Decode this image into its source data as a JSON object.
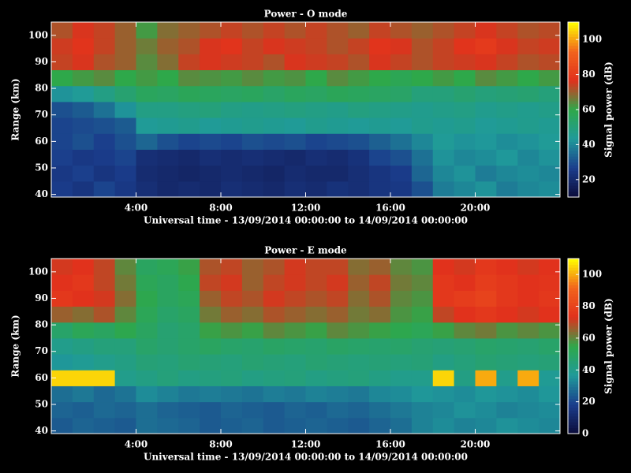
{
  "chart_data": [
    {
      "type": "heatmap",
      "title": "Power - O mode",
      "xlabel": "Universal time - 13/09/2014 00:00:00 to 14/09/2014 00:00:00",
      "ylabel": "Range (km)",
      "colorbar_label": "Signal power (dB)",
      "xlim": [
        0,
        24
      ],
      "xticks": [
        {
          "value": 4,
          "label": "4:00"
        },
        {
          "value": 8,
          "label": "8:00"
        },
        {
          "value": 12,
          "label": "12:00"
        },
        {
          "value": 16,
          "label": "16:00"
        },
        {
          "value": 20,
          "label": "20:00"
        }
      ],
      "ylim": [
        39,
        105
      ],
      "yticks": [
        40,
        50,
        60,
        70,
        80,
        90,
        100
      ],
      "zlim": [
        10,
        110
      ],
      "zticks": [
        20,
        40,
        60,
        80,
        100
      ],
      "colormap": [
        "#0b0b3a",
        "#1b3d8c",
        "#1f9a9a",
        "#2ea84a",
        "#e0301c",
        "#f2641c",
        "#ffff00"
      ],
      "x": [
        0.5,
        1.5,
        2.5,
        3.5,
        4.5,
        5.5,
        6.5,
        7.5,
        8.5,
        9.5,
        10.5,
        11.5,
        12.5,
        13.5,
        14.5,
        15.5,
        16.5,
        17.5,
        18.5,
        19.5,
        20.5,
        21.5,
        22.5,
        23.5
      ],
      "y": [
        42,
        48,
        54,
        60,
        66,
        72,
        78,
        84,
        90,
        96,
        102
      ],
      "z": [
        [
          26,
          24,
          28,
          25,
          22,
          20,
          21,
          20,
          22,
          21,
          20,
          22,
          21,
          23,
          22,
          24,
          25,
          30,
          38,
          40,
          42,
          38,
          40,
          41
        ],
        [
          25,
          27,
          24,
          26,
          21,
          20,
          19,
          20,
          21,
          20,
          19,
          21,
          20,
          20,
          22,
          24,
          26,
          34,
          40,
          42,
          38,
          40,
          41,
          40
        ],
        [
          27,
          25,
          26,
          28,
          22,
          21,
          20,
          22,
          21,
          22,
          21,
          20,
          22,
          21,
          23,
          28,
          30,
          36,
          42,
          40,
          41,
          43,
          40,
          42
        ],
        [
          28,
          30,
          27,
          30,
          34,
          30,
          28,
          29,
          28,
          30,
          29,
          30,
          28,
          29,
          30,
          33,
          36,
          40,
          44,
          42,
          43,
          41,
          42,
          44
        ],
        [
          28,
          29,
          30,
          32,
          44,
          45,
          46,
          44,
          45,
          46,
          45,
          44,
          46,
          45,
          44,
          45,
          44,
          46,
          45,
          46,
          44,
          45,
          46,
          45
        ],
        [
          30,
          32,
          36,
          42,
          48,
          48,
          49,
          50,
          48,
          47,
          48,
          49,
          48,
          47,
          49,
          48,
          47,
          46,
          47,
          48,
          46,
          47,
          46,
          47
        ],
        [
          42,
          44,
          48,
          52,
          56,
          55,
          57,
          56,
          55,
          56,
          54,
          56,
          55,
          57,
          56,
          55,
          54,
          50,
          50,
          52,
          50,
          51,
          52,
          50
        ],
        [
          60,
          62,
          64,
          60,
          62,
          60,
          64,
          63,
          62,
          64,
          62,
          63,
          60,
          64,
          62,
          60,
          58,
          60,
          62,
          60,
          64,
          62,
          60,
          62
        ],
        [
          74,
          76,
          72,
          70,
          64,
          68,
          74,
          76,
          75,
          74,
          72,
          76,
          75,
          74,
          72,
          76,
          74,
          72,
          74,
          75,
          76,
          74,
          72,
          73
        ],
        [
          75,
          78,
          74,
          70,
          66,
          70,
          72,
          76,
          78,
          74,
          76,
          75,
          74,
          72,
          74,
          78,
          76,
          72,
          74,
          78,
          80,
          76,
          74,
          75
        ],
        [
          72,
          76,
          74,
          70,
          62,
          68,
          70,
          72,
          74,
          72,
          74,
          72,
          74,
          72,
          70,
          74,
          72,
          70,
          72,
          74,
          76,
          74,
          72,
          73
        ]
      ]
    },
    {
      "type": "heatmap",
      "title": "Power - E mode",
      "xlabel": "Universal time - 13/09/2014 00:00:00 to 14/09/2014 00:00:00",
      "ylabel": "Range (km)",
      "colorbar_label": "Signal power (dB)",
      "xlim": [
        0,
        24
      ],
      "xticks": [
        {
          "value": 4,
          "label": "4:00"
        },
        {
          "value": 8,
          "label": "8:00"
        },
        {
          "value": 12,
          "label": "12:00"
        },
        {
          "value": 16,
          "label": "16:00"
        },
        {
          "value": 20,
          "label": "20:00"
        }
      ],
      "ylim": [
        39,
        105
      ],
      "yticks": [
        40,
        50,
        60,
        70,
        80,
        90,
        100
      ],
      "zlim": [
        0,
        110
      ],
      "zticks": [
        0,
        20,
        40,
        60,
        80,
        100
      ],
      "colormap": [
        "#0b0b3a",
        "#1b3d8c",
        "#1f9a9a",
        "#2ea84a",
        "#e0301c",
        "#f2641c",
        "#ffff00"
      ],
      "x": [
        0.5,
        1.5,
        2.5,
        3.5,
        4.5,
        5.5,
        6.5,
        7.5,
        8.5,
        9.5,
        10.5,
        11.5,
        12.5,
        13.5,
        14.5,
        15.5,
        16.5,
        17.5,
        18.5,
        19.5,
        20.5,
        21.5,
        22.5,
        23.5
      ],
      "y": [
        42,
        48,
        54,
        60,
        66,
        72,
        78,
        84,
        90,
        96,
        102
      ],
      "z": [
        [
          24,
          26,
          25,
          24,
          28,
          27,
          26,
          24,
          25,
          26,
          24,
          25,
          26,
          25,
          24,
          26,
          28,
          32,
          34,
          32,
          33,
          35,
          34,
          33
        ],
        [
          26,
          25,
          27,
          26,
          28,
          26,
          25,
          24,
          26,
          25,
          24,
          26,
          25,
          27,
          26,
          28,
          30,
          32,
          33,
          35,
          34,
          32,
          33,
          34
        ],
        [
          28,
          30,
          27,
          29,
          34,
          32,
          30,
          31,
          30,
          29,
          31,
          30,
          32,
          31,
          30,
          33,
          34,
          36,
          35,
          34,
          36,
          35,
          34,
          36
        ],
        [
          105,
          105,
          105,
          40,
          42,
          44,
          42,
          43,
          44,
          42,
          43,
          44,
          42,
          43,
          44,
          42,
          40,
          40,
          105,
          42,
          100,
          40,
          100,
          38
        ],
        [
          36,
          38,
          40,
          42,
          45,
          44,
          46,
          45,
          44,
          46,
          45,
          44,
          46,
          45,
          44,
          45,
          44,
          45,
          42,
          44,
          46,
          45,
          44,
          45
        ],
        [
          40,
          42,
          44,
          44,
          48,
          46,
          48,
          50,
          48,
          47,
          49,
          48,
          47,
          49,
          48,
          47,
          48,
          46,
          45,
          46,
          48,
          47,
          46,
          48
        ],
        [
          48,
          52,
          50,
          54,
          50,
          46,
          48,
          56,
          58,
          56,
          60,
          58,
          56,
          60,
          58,
          56,
          54,
          52,
          56,
          60,
          62,
          58,
          60,
          58
        ],
        [
          66,
          64,
          68,
          60,
          52,
          48,
          50,
          62,
          66,
          64,
          68,
          66,
          64,
          66,
          62,
          64,
          58,
          56,
          70,
          74,
          76,
          74,
          72,
          74
        ],
        [
          76,
          74,
          72,
          64,
          54,
          50,
          52,
          66,
          70,
          68,
          72,
          70,
          68,
          70,
          64,
          68,
          60,
          58,
          76,
          78,
          80,
          76,
          74,
          76
        ],
        [
          74,
          76,
          70,
          62,
          52,
          50,
          54,
          70,
          72,
          66,
          70,
          72,
          70,
          72,
          66,
          70,
          62,
          60,
          76,
          74,
          78,
          76,
          74,
          75
        ],
        [
          72,
          74,
          70,
          60,
          50,
          52,
          56,
          68,
          70,
          66,
          68,
          72,
          70,
          70,
          64,
          66,
          60,
          58,
          74,
          72,
          76,
          74,
          72,
          74
        ]
      ]
    }
  ]
}
